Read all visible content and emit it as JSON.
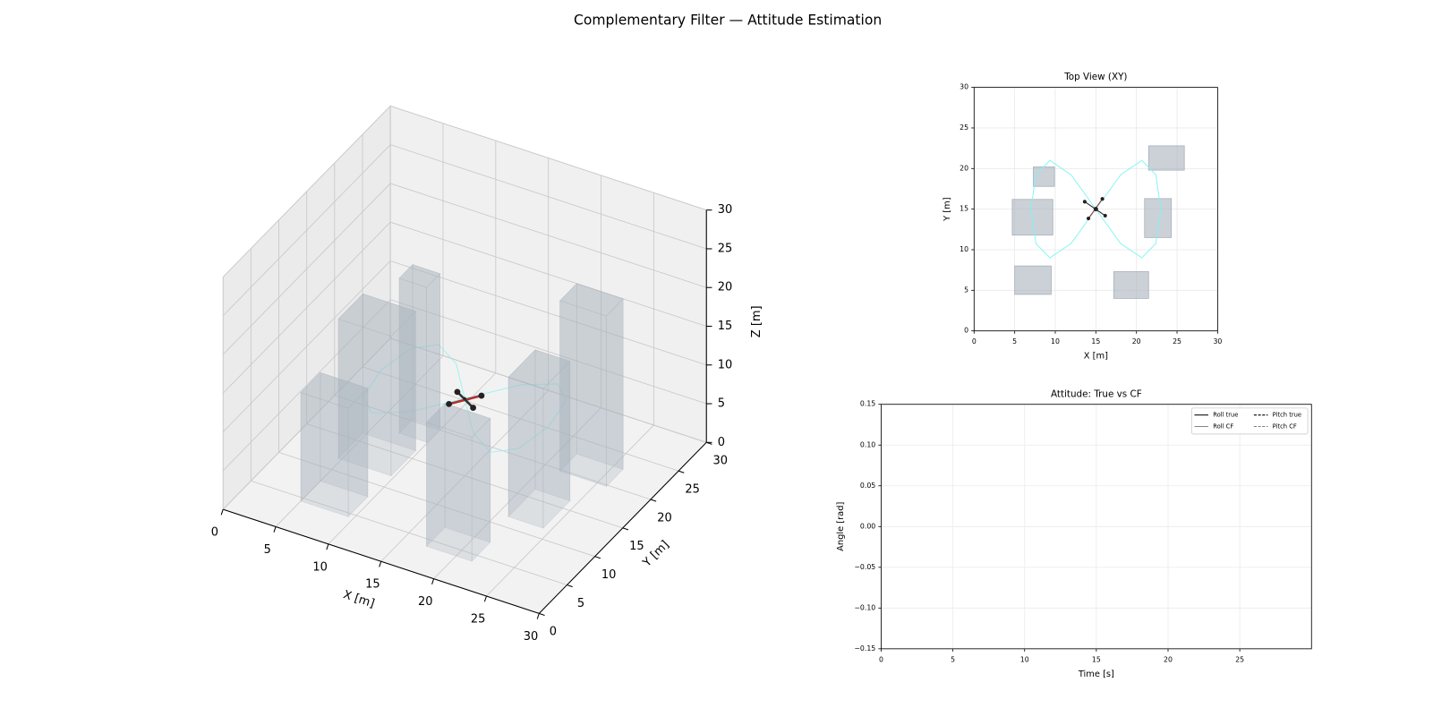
{
  "title": "Complementary Filter — Attitude Estimation",
  "chart_data": [
    {
      "type": "3d",
      "xlabel": "X [m]",
      "ylabel": "Y [m]",
      "zlabel": "Z [m]",
      "xlim": [
        0,
        30
      ],
      "ylim": [
        0,
        30
      ],
      "zlim": [
        0,
        30
      ],
      "xticks": [
        0,
        5,
        10,
        15,
        20,
        25,
        30
      ],
      "yticks": [
        0,
        5,
        10,
        15,
        20,
        25,
        30
      ],
      "zticks": [
        0,
        5,
        10,
        15,
        20,
        25,
        30
      ],
      "obstacle_color": "#a9b2bd",
      "trajectory_color": "#7ff5f5",
      "drone_color": "#222222",
      "obstacles": [
        {
          "x": [
            7.3,
            9.9
          ],
          "y": [
            17.8,
            20.2
          ],
          "height": 20
        },
        {
          "x": [
            4.7,
            9.7
          ],
          "y": [
            11.8,
            16.2
          ],
          "height": 18
        },
        {
          "x": [
            5,
            9.5
          ],
          "y": [
            4.5,
            8
          ],
          "height": 14
        },
        {
          "x": [
            17.2,
            21.5
          ],
          "y": [
            4,
            7.3
          ],
          "height": 16
        },
        {
          "x": [
            21,
            24.3
          ],
          "y": [
            11.5,
            16.3
          ],
          "height": 18
        },
        {
          "x": [
            21.5,
            25.9
          ],
          "y": [
            19.8,
            22.8
          ],
          "height": 22
        }
      ],
      "trajectory": {
        "x": [
          15,
          18.06,
          20.66,
          22.39,
          23,
          22.39,
          20.66,
          18.06,
          15,
          11.94,
          9.34,
          7.61,
          7,
          7.61,
          9.34,
          11.94,
          15
        ],
        "y": [
          15,
          19.24,
          21,
          19.24,
          15,
          10.76,
          9,
          10.76,
          15,
          19.24,
          21,
          19.24,
          15,
          10.76,
          9,
          10.76,
          15
        ],
        "z": 10
      },
      "drone": {
        "x": 15,
        "y": 15,
        "z": 10
      }
    },
    {
      "type": "xy",
      "title": "Top View (XY)",
      "xlabel": "X [m]",
      "ylabel": "Y [m]",
      "xlim": [
        0,
        30
      ],
      "ylim": [
        0,
        30
      ],
      "xticks": [
        0,
        5,
        10,
        15,
        20,
        25,
        30
      ],
      "yticks": [
        0,
        5,
        10,
        15,
        20,
        25,
        30
      ],
      "grid": true
    },
    {
      "type": "line",
      "title": "Attitude: True vs CF",
      "xlabel": "Time [s]",
      "ylabel": "Angle [rad]",
      "xlim": [
        0,
        30
      ],
      "ylim": [
        -0.15,
        0.15
      ],
      "xticks": [
        0,
        5,
        10,
        15,
        20,
        25
      ],
      "yticks": [
        {
          "value": -0.15,
          "label": "−0.15"
        },
        {
          "value": -0.1,
          "label": "−0.10"
        },
        {
          "value": -0.05,
          "label": "−0.05"
        },
        {
          "value": 0,
          "label": "0.00"
        },
        0.05,
        {
          "value": 0.1,
          "label": "0.10"
        },
        0.15
      ],
      "grid": true,
      "legend": "upper right",
      "x": [],
      "series": [
        {
          "name": "Roll true",
          "color": "#000000",
          "linestyle": "solid",
          "values": []
        },
        {
          "name": "Roll CF",
          "color": "#555555",
          "linestyle": "solid",
          "values": []
        },
        {
          "name": "Pitch true",
          "color": "#000000",
          "linestyle": "dashed",
          "values": []
        },
        {
          "name": "Pitch CF",
          "color": "#555555",
          "linestyle": "dashed",
          "values": []
        }
      ]
    }
  ]
}
